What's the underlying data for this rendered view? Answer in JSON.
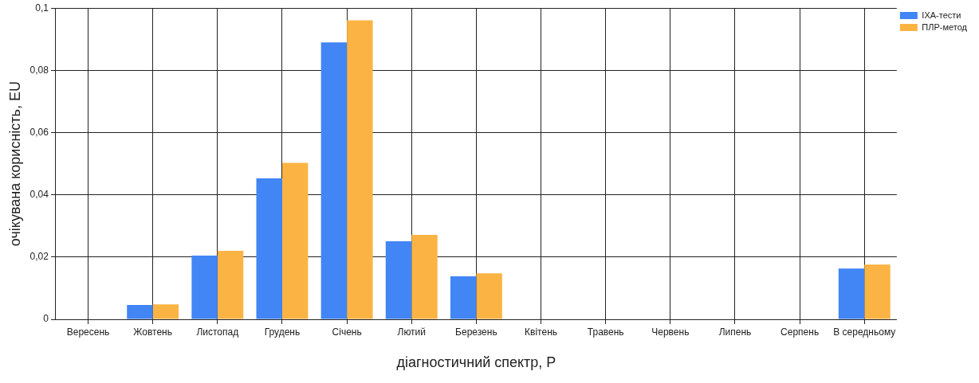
{
  "chart_data": {
    "type": "bar",
    "xlabel": "діагностичний спектр, P",
    "ylabel": "очікувана корисність, EU",
    "categories": [
      "Вересень",
      "Жовтень",
      "Листопад",
      "Грудень",
      "Січень",
      "Лютий",
      "Березень",
      "Квітень",
      "Травень",
      "Червень",
      "Липень",
      "Серпень",
      "В середньому"
    ],
    "series": [
      {
        "name": "IXA-тести",
        "color": "#4285f4",
        "values": [
          0,
          0.0046,
          0.0205,
          0.0453,
          0.089,
          0.0251,
          0.0138,
          0,
          0,
          0,
          0,
          0,
          0.0163
        ]
      },
      {
        "name": "ПЛР-метод",
        "color": "#fbb444",
        "values": [
          0,
          0.0048,
          0.022,
          0.0503,
          0.0961,
          0.0271,
          0.0148,
          0,
          0,
          0,
          0,
          0,
          0.0176
        ]
      }
    ],
    "ylim": [
      0,
      0.1
    ],
    "yticks": [
      0,
      {
        "value": 0.02,
        "label": "0,02"
      },
      {
        "value": 0.04,
        "label": "0,04"
      },
      {
        "value": 0.06,
        "label": "0,06"
      },
      {
        "value": 0.08,
        "label": "0,08"
      },
      {
        "value": 0.1,
        "label": "0,1"
      }
    ],
    "grid": true,
    "legend": "top right"
  }
}
